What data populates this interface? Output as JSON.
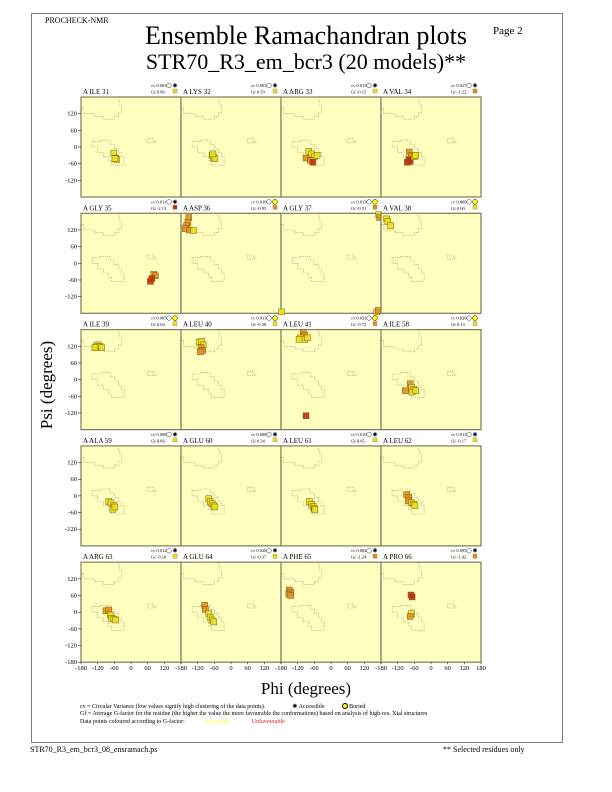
{
  "header": {
    "program": "PROCHECK-NMR",
    "page": "Page  2",
    "title": "Ensemble Ramachandran plots",
    "subtitle": "STR70_R3_em_bcr3 (20 models)**"
  },
  "footer": {
    "filename": "STR70_R3_em_bcr3_08_ensramach.ps",
    "note": "** Selected residues only"
  },
  "legend": {
    "cv_line": "cv = Circular Variance (low values signify high clustering of the data points).",
    "accessible_label": "Accessible",
    "buried_label": "Buried",
    "gf_line": "Gf = Average G-factor for the residue (the higher the value the more favourable the conformations) based on analysis of high-res. Xtal structures",
    "colour_line": "Data points coloured according to G-factor:",
    "favourable_label": "Favourable",
    "unfavourable_label": "Unfavourable",
    "favourable_color": "#ffff40",
    "unfavourable_color": "#e02020"
  },
  "colors": {
    "panel_bg": "#ffffc0",
    "panel_border": "#7a7a5a",
    "region_outline": "#a09a60",
    "good": "#e8e020",
    "mid": "#e09020",
    "bad": "#c03010"
  },
  "chart_data": {
    "type": "scatter",
    "title": "Ensemble Ramachandran plots",
    "xlabel": "Phi (degrees)",
    "ylabel": "Psi (degrees)",
    "xlim": [
      -180,
      180
    ],
    "ylim": [
      -180,
      180
    ],
    "x_ticks": [
      "-180",
      "-120",
      "-60",
      "0",
      "60",
      "120",
      "180"
    ],
    "y_ticks": [
      "-180",
      "-120",
      "-60",
      "0",
      "60",
      "120"
    ],
    "grid": false,
    "panels": [
      {
        "residue": "A ILE 31",
        "cv": "cv 0.003",
        "gf": "Gf 0.86",
        "burial": "accessible",
        "gf_class": "good",
        "points": [
          [
            -62,
            -22,
            "good"
          ],
          [
            -55,
            -40,
            "good"
          ],
          [
            -52,
            -45,
            "good"
          ],
          [
            -58,
            -42,
            "good"
          ]
        ]
      },
      {
        "residue": "A LYS 32",
        "cv": "cv 0.003",
        "gf": "Gf 0.59",
        "burial": "accessible",
        "gf_class": "good",
        "points": [
          [
            -68,
            -30,
            "good"
          ],
          [
            -62,
            -38,
            "good"
          ],
          [
            -58,
            -42,
            "good"
          ],
          [
            -65,
            -25,
            "good"
          ]
        ]
      },
      {
        "residue": "A ARG 33",
        "cv": "cv 0.015",
        "gf": "Gf -0.15",
        "burial": "accessible",
        "gf_class": "good",
        "points": [
          [
            -80,
            -15,
            "good"
          ],
          [
            -70,
            -25,
            "good"
          ],
          [
            -60,
            -35,
            "good"
          ],
          [
            -90,
            -40,
            "mid"
          ],
          [
            -75,
            -48,
            "mid"
          ],
          [
            -65,
            -55,
            "bad"
          ],
          [
            -50,
            -30,
            "good"
          ]
        ]
      },
      {
        "residue": "A VAL 34",
        "cv": "cv 0.027",
        "gf": "Gf -1.22",
        "burial": "accessible",
        "gf_class": "mid",
        "points": [
          [
            -78,
            -18,
            "mid"
          ],
          [
            -70,
            -30,
            "mid"
          ],
          [
            -80,
            -45,
            "bad"
          ],
          [
            -85,
            -55,
            "bad"
          ],
          [
            -75,
            -52,
            "bad"
          ],
          [
            -60,
            -35,
            "good"
          ],
          [
            -55,
            -30,
            "good"
          ]
        ]
      },
      {
        "residue": "A GLY 35",
        "cv": "cv 0.011",
        "gf": "Gf -2.13",
        "burial": "accessible",
        "gf_class": "bad",
        "points": [
          [
            82,
            -40,
            "mid"
          ],
          [
            88,
            -45,
            "mid"
          ],
          [
            75,
            -55,
            "bad"
          ],
          [
            70,
            -65,
            "bad"
          ]
        ]
      },
      {
        "residue": "A ASP 36",
        "cv": "cv 0.016",
        "gf": "Gf -0.95",
        "burial": "buried",
        "gf_class": "mid",
        "points": [
          [
            -152,
            165,
            "mid"
          ],
          [
            -155,
            148,
            "mid"
          ],
          [
            -160,
            135,
            "mid"
          ],
          [
            -165,
            125,
            "mid"
          ],
          [
            -150,
            120,
            "mid"
          ],
          [
            -135,
            118,
            "good"
          ]
        ]
      },
      {
        "residue": "A GLY 37",
        "cv": "cv 0.013",
        "gf": "Gf -0.51",
        "burial": "buried",
        "gf_class": "mid",
        "points": [
          [
            172,
            175,
            "good"
          ],
          [
            175,
            165,
            "mid"
          ],
          [
            165,
            -175,
            "good"
          ],
          [
            170,
            -170,
            "mid"
          ],
          [
            -178,
            -175,
            "good"
          ]
        ]
      },
      {
        "residue": "A VAL 38",
        "cv": "cv 0.006",
        "gf": "Gf 0.00",
        "burial": "buried",
        "gf_class": "good",
        "points": [
          [
            -160,
            160,
            "good"
          ],
          [
            -155,
            150,
            "good"
          ],
          [
            -145,
            135,
            "good"
          ]
        ]
      },
      {
        "residue": "A ILE 39",
        "cv": "cv 0.005",
        "gf": "Gf 0.04",
        "burial": "buried",
        "gf_class": "good",
        "points": [
          [
            -120,
            125,
            "good"
          ],
          [
            -125,
            118,
            "good"
          ],
          [
            -112,
            120,
            "good"
          ],
          [
            -105,
            115,
            "good"
          ],
          [
            -130,
            115,
            "good"
          ]
        ]
      },
      {
        "residue": "A LEU 40",
        "cv": "cv 0.013",
        "gf": "Gf -0.38",
        "burial": "buried",
        "gf_class": "good",
        "points": [
          [
            -115,
            135,
            "good"
          ],
          [
            -105,
            138,
            "good"
          ],
          [
            -100,
            125,
            "good"
          ],
          [
            -108,
            115,
            "mid"
          ],
          [
            -102,
            105,
            "mid"
          ],
          [
            -110,
            100,
            "mid"
          ]
        ]
      },
      {
        "residue": "A LEU 41",
        "cv": "cv 0.031",
        "gf": "Gf -0.72",
        "burial": "buried",
        "gf_class": "mid",
        "points": [
          [
            -100,
            170,
            "mid"
          ],
          [
            -95,
            160,
            "mid"
          ],
          [
            -110,
            150,
            "good"
          ],
          [
            -95,
            145,
            "good"
          ],
          [
            -85,
            150,
            "good"
          ],
          [
            -115,
            145,
            "good"
          ],
          [
            -90,
            -130,
            "bad"
          ]
        ]
      },
      {
        "residue": "A ILE 58",
        "cv": "cv 0.020",
        "gf": "Gf 0.13",
        "burial": "buried",
        "gf_class": "good",
        "points": [
          [
            -75,
            -15,
            "mid"
          ],
          [
            -70,
            -28,
            "good"
          ],
          [
            -62,
            -35,
            "good"
          ],
          [
            -68,
            -45,
            "good"
          ],
          [
            -92,
            -40,
            "mid"
          ],
          [
            -55,
            -40,
            "good"
          ]
        ]
      },
      {
        "residue": "A ALA 59",
        "cv": "cv 0.008",
        "gf": "Gf 0.66",
        "burial": "accessible",
        "gf_class": "good",
        "points": [
          [
            -80,
            -20,
            "good"
          ],
          [
            -72,
            -25,
            "good"
          ],
          [
            -62,
            -35,
            "good"
          ],
          [
            -65,
            -48,
            "good"
          ],
          [
            -58,
            -40,
            "good"
          ]
        ]
      },
      {
        "residue": "A GLU 60",
        "cv": "cv 0.008",
        "gf": "Gf 0.34",
        "burial": "accessible",
        "gf_class": "good",
        "points": [
          [
            -80,
            -10,
            "good"
          ],
          [
            -75,
            -20,
            "good"
          ],
          [
            -68,
            -28,
            "good"
          ],
          [
            -62,
            -35,
            "good"
          ],
          [
            -58,
            -40,
            "good"
          ]
        ]
      },
      {
        "residue": "A LEU 61",
        "cv": "cv 0.010",
        "gf": "Gf 0.65",
        "burial": "accessible",
        "gf_class": "good",
        "points": [
          [
            -78,
            -20,
            "good"
          ],
          [
            -70,
            -30,
            "good"
          ],
          [
            -64,
            -38,
            "good"
          ],
          [
            -60,
            -45,
            "good"
          ],
          [
            -58,
            -50,
            "good"
          ]
        ]
      },
      {
        "residue": "A LEU 62",
        "cv": "cv 0.013",
        "gf": "Gf -0.17",
        "burial": "accessible",
        "gf_class": "good",
        "points": [
          [
            -88,
            5,
            "mid"
          ],
          [
            -80,
            -5,
            "mid"
          ],
          [
            -82,
            -18,
            "mid"
          ],
          [
            -70,
            -25,
            "good"
          ],
          [
            -62,
            -30,
            "good"
          ],
          [
            -58,
            -35,
            "good"
          ]
        ]
      },
      {
        "residue": "A ARG 63",
        "cv": "cv 0.012",
        "gf": "Gf -0.10",
        "burial": "accessible",
        "gf_class": "good",
        "points": [
          [
            -90,
            5,
            "mid"
          ],
          [
            -80,
            8,
            "mid"
          ],
          [
            -75,
            -10,
            "good"
          ],
          [
            -70,
            -22,
            "good"
          ],
          [
            -62,
            -25,
            "good"
          ],
          [
            -55,
            -28,
            "good"
          ]
        ]
      },
      {
        "residue": "A GLU 64",
        "cv": "cv 0.028",
        "gf": "Gf -0.37",
        "burial": "accessible",
        "gf_class": "good",
        "points": [
          [
            -95,
            25,
            "mid"
          ],
          [
            -92,
            10,
            "mid"
          ],
          [
            -80,
            -5,
            "good"
          ],
          [
            -75,
            -18,
            "good"
          ],
          [
            -68,
            -28,
            "good"
          ],
          [
            -62,
            -35,
            "good"
          ]
        ]
      },
      {
        "residue": "A PHE 65",
        "cv": "cv 0.004",
        "gf": "Gf -1.24",
        "burial": "accessible",
        "gf_class": "mid",
        "points": [
          [
            -150,
            80,
            "mid"
          ],
          [
            -145,
            72,
            "mid"
          ],
          [
            -152,
            65,
            "mid"
          ],
          [
            -145,
            60,
            "mid"
          ]
        ]
      },
      {
        "residue": "A PRO 66",
        "cv": "cv 0.095",
        "gf": "Gf -1.42",
        "burial": "accessible",
        "gf_class": "mid",
        "points": [
          [
            -72,
            62,
            "bad"
          ],
          [
            -68,
            55,
            "bad"
          ],
          [
            -70,
            -5,
            "good"
          ],
          [
            -75,
            -15,
            "mid"
          ]
        ]
      }
    ]
  }
}
